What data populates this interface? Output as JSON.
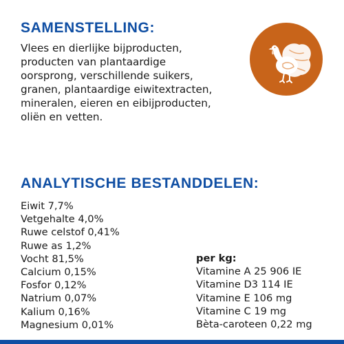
{
  "composition": {
    "heading": "SAMENSTELLING:",
    "text": "Vlees en dierlijke bijproducten,\nproducten van plantaardige\noorsprong, verschillende suikers,\ngranen, plantaardige eiwitextracten,\nmineralen, eieren en eibijproducten,\noliën en vetten."
  },
  "badge": {
    "icon": "turkey-icon",
    "color": "#c8641a"
  },
  "analytical": {
    "heading": "ANALYTISCHE BESTANDDELEN:",
    "items": [
      "Eiwit 7,7%",
      "Vetgehalte 4,0%",
      "Ruwe celstof 0,41%",
      "Ruwe as 1,2%",
      "Vocht 81,5%",
      "Calcium 0,15%",
      "Fosfor 0,12%",
      "Natrium 0,07%",
      "Kalium 0,16%",
      "Magnesium 0,01%"
    ]
  },
  "vitamins": {
    "title": "per kg:",
    "items": [
      "Vitamine A 25 906 IE",
      "Vitamine D3 114 IE",
      "Vitamine E 106 mg",
      "Vitamine C 19 mg",
      "Bèta-caroteen 0,22 mg"
    ]
  },
  "colors": {
    "heading": "#0f4ea3",
    "footer_bar": "#0f4ea3"
  }
}
